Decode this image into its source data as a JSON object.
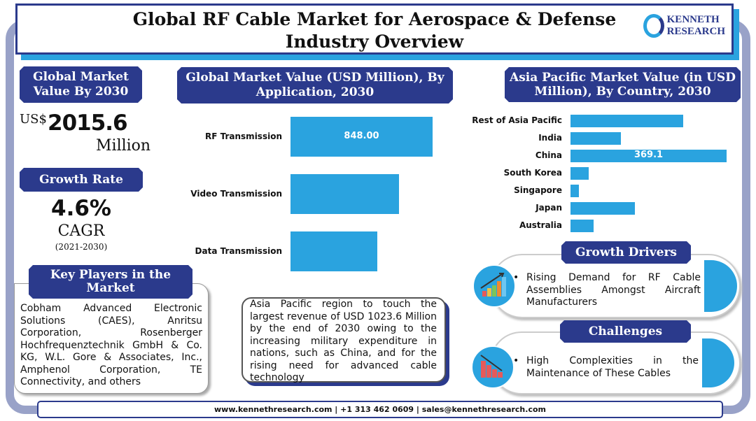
{
  "header": {
    "title_line1": "Global RF Cable Market for Aerospace & Defense",
    "title_line2": "Industry Overview",
    "logo_line1": "KENNETH",
    "logo_line2": "RESEARCH"
  },
  "market_value": {
    "heading": "Global Market Value By 2030",
    "currency": "US$",
    "value": "2015.6",
    "unit": "Million"
  },
  "growth": {
    "heading": "Growth Rate",
    "value": "4.6%",
    "label": "CAGR",
    "period": "(2021-2030)"
  },
  "key_players": {
    "heading": "Key Players in the Market",
    "text": "Cobham Advanced Electronic Solutions (CAES), Anritsu Corporation, Rosenberger Hochfrequenztechnik GmbH & Co. KG, W.L. Gore & Associates, Inc., Amphenol Corporation, TE Connectivity, and others"
  },
  "note": "Asia Pacific region to touch the largest revenue of USD 1023.6 Million by the end of 2030 owing to the increasing military expenditure in nations, such as China, and for the rising need for advanced cable technology",
  "drivers": {
    "heading": "Growth Drivers",
    "text": "Rising Demand for RF Cable Assemblies Amongst Aircraft Manufacturers",
    "icon": "rising-bar-chart-icon"
  },
  "challenges": {
    "heading": "Challenges",
    "text": "High Complexities in the Maintenance of These Cables",
    "icon": "falling-bar-chart-icon"
  },
  "footer": "www.kennethresearch.com | +1 313 462 0609 | sales@kennethresearch.com",
  "colors": {
    "navy": "#2b3a8c",
    "bar": "#2aa3df",
    "frame": "#99a2c8"
  },
  "chart_data": [
    {
      "type": "bar",
      "orientation": "horizontal",
      "title": "Global Market Value (USD Million), By Application, 2030",
      "categories": [
        "RF Transmission",
        "Video Transmission",
        "Data Transmission"
      ],
      "values": [
        848.0,
        647,
        518
      ],
      "data_labels": [
        "848.00",
        "",
        ""
      ]
    },
    {
      "type": "bar",
      "orientation": "horizontal",
      "title": "Asia Pacific Market Value (in USD Million), By Country, 2030",
      "categories": [
        "Rest of Asia Pacific",
        "India",
        "China",
        "South Korea",
        "Singapore",
        "Japan",
        "Australia"
      ],
      "values": [
        266.5,
        119.2,
        369.1,
        43,
        20,
        152,
        55
      ],
      "data_labels": [
        "",
        "",
        "369.1",
        "",
        "",
        "",
        ""
      ]
    }
  ]
}
